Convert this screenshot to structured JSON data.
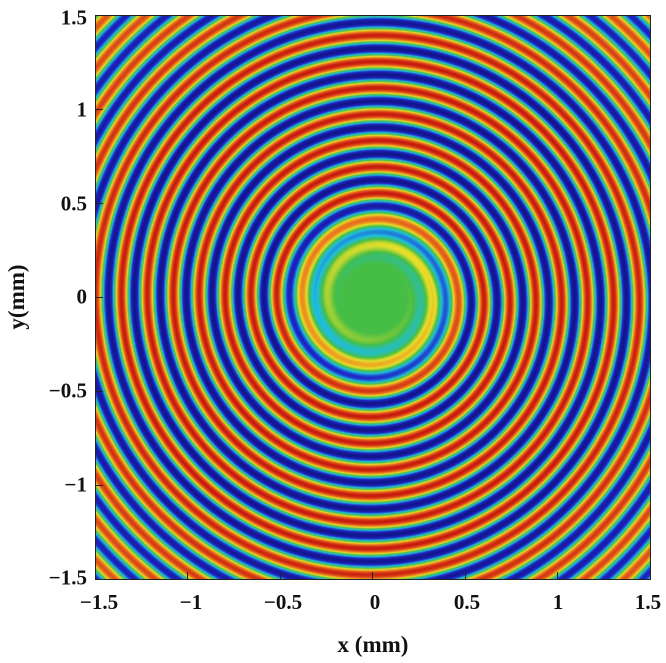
{
  "chart_data": {
    "type": "heatmap",
    "title": "",
    "xlabel": "x (mm)",
    "ylabel": "y(mm)",
    "xlim": [
      -1.5,
      1.5
    ],
    "ylim": [
      -1.5,
      1.5
    ],
    "x_ticks": [
      "−1.5",
      "−1",
      "−0.5",
      "0",
      "0.5",
      "1",
      "1.5"
    ],
    "y_ticks": [
      "1.5",
      "1",
      "0.5",
      "0",
      "−0.5",
      "−1",
      "−1.5"
    ],
    "x_tick_values": [
      -1.5,
      -1,
      -0.5,
      0,
      0.5,
      1,
      1.5
    ],
    "y_tick_values": [
      1.5,
      1,
      0.5,
      0,
      -0.5,
      -1,
      -1.5
    ],
    "grid": false,
    "colormap": "jet",
    "pattern": "single-armed spiral wave centered near origin",
    "spiral_center": [
      0.0,
      0.0
    ],
    "spiral_pitch_mm": 0.14,
    "colors": {
      "background": "#3fbf3f",
      "low": "#1a1aa6",
      "mid_low": "#20c8e0",
      "mid": "#3fbf3f",
      "mid_high": "#f0e020",
      "high": "#d81e10"
    }
  }
}
